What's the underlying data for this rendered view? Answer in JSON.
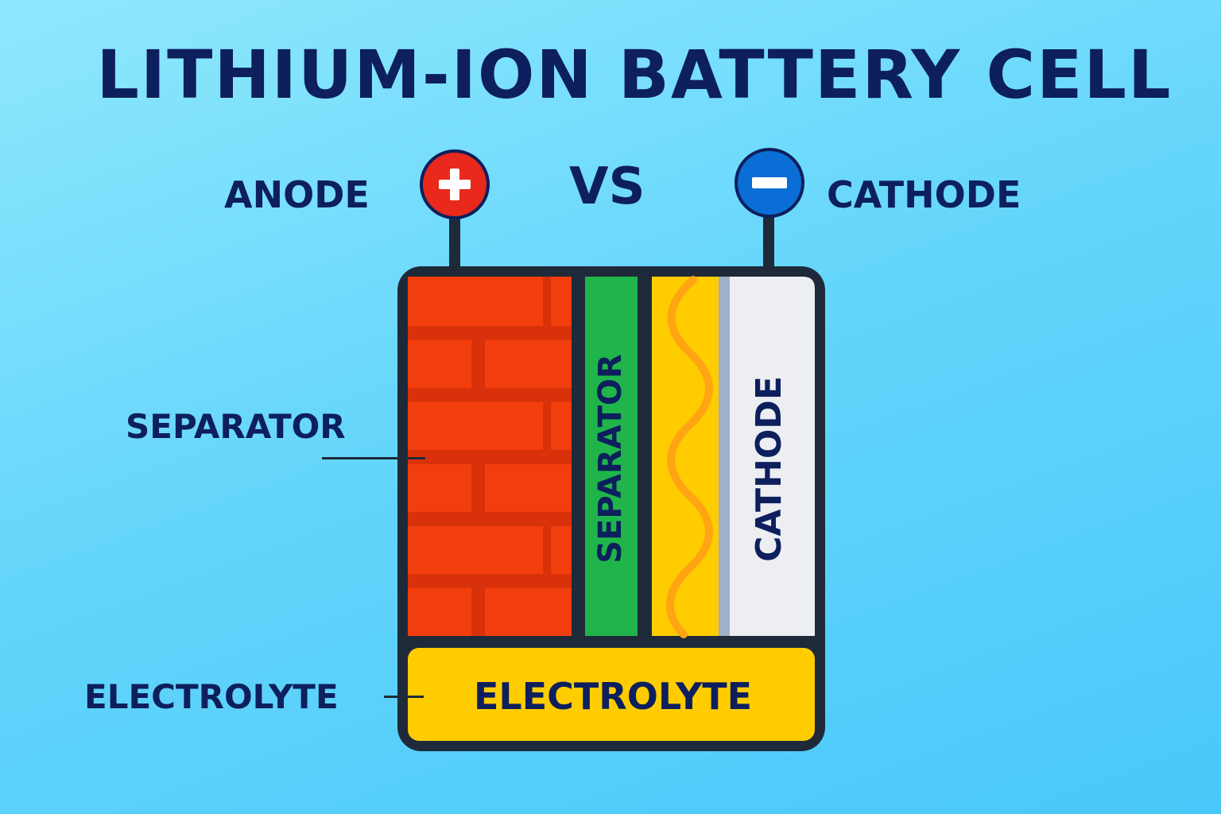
{
  "title": "LITHIUM-ION BATTERY CELL",
  "labels": {
    "anode": "ANODE",
    "vs": "VS",
    "cathode": "CATHODE",
    "separator_side": "SEPARATOR",
    "electrolyte_side": "ELECTROLYTE"
  },
  "cell": {
    "separator_layer": "SEPARATOR",
    "cathode_layer": "CATHODE",
    "electrolyte_layer": "ELECTROLYTE"
  },
  "colors": {
    "background": "#66d6fb",
    "title_text": "#0d1f5c",
    "anode_brick": "#f23d0c",
    "separator": "#1fb54a",
    "yellow_layer": "#ffcc00",
    "wave": "#ffa514",
    "cathode_layer": "#eceef2",
    "electrolyte": "#ffcc00",
    "plus_terminal": "#e8291b",
    "minus_terminal": "#0b6ed6",
    "outline": "#1e2a3a"
  },
  "icons": {
    "positive_terminal": "plus-icon",
    "negative_terminal": "minus-icon"
  }
}
